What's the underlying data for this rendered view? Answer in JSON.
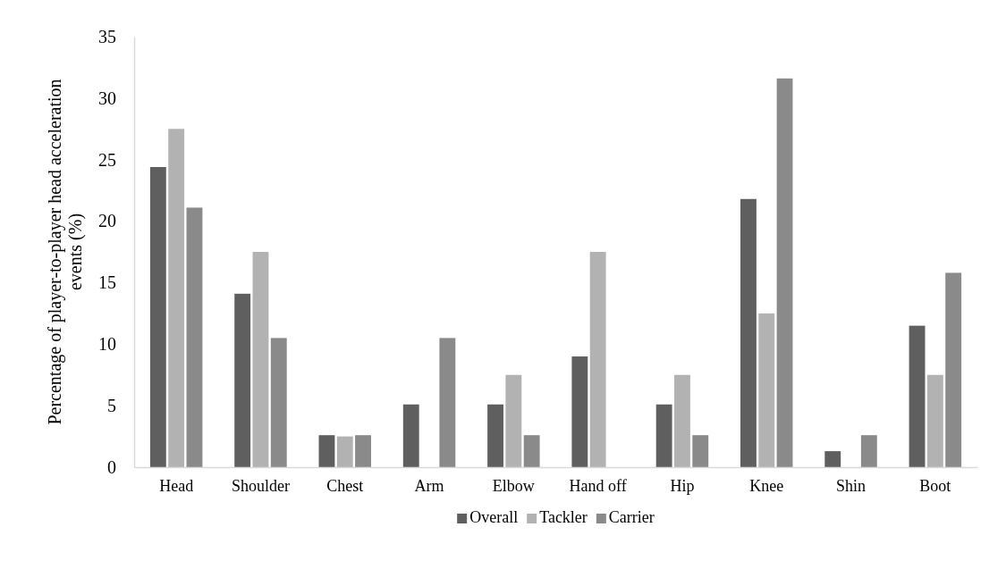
{
  "chart_data": {
    "type": "bar",
    "ylabel": "Percentage of player-to-player head acceleration events (%)",
    "categories": [
      "Head",
      "Shoulder",
      "Chest",
      "Arm",
      "Elbow",
      "Hand off",
      "Hip",
      "Knee",
      "Shin",
      "Boot"
    ],
    "series": [
      {
        "name": "Overall",
        "color": "#5f5f5f",
        "values": [
          24.4,
          14.1,
          2.6,
          5.1,
          5.1,
          9.0,
          5.1,
          21.8,
          1.3,
          11.5
        ]
      },
      {
        "name": "Tackler",
        "color": "#b2b2b2",
        "values": [
          27.5,
          17.5,
          2.5,
          0,
          7.5,
          17.5,
          7.5,
          12.5,
          0,
          7.5
        ]
      },
      {
        "name": "Carrier",
        "color": "#8a8a8a",
        "values": [
          21.1,
          10.5,
          2.6,
          10.5,
          2.6,
          0,
          2.6,
          31.6,
          2.6,
          15.8
        ]
      }
    ],
    "ylim": [
      0,
      35
    ],
    "yticks": [
      0,
      5,
      10,
      15,
      20,
      25,
      30,
      35
    ],
    "grid": false,
    "legend": "bottom"
  }
}
